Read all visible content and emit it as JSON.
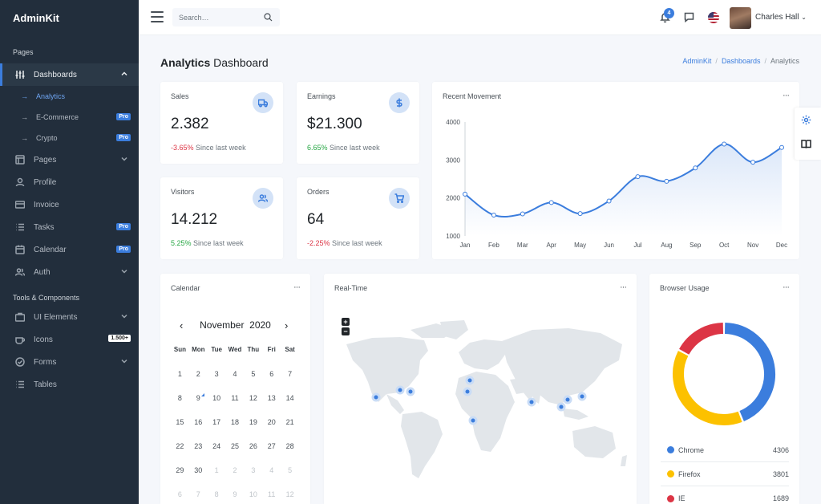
{
  "brand": "AdminKit",
  "sidebar": {
    "section_pages": "Pages",
    "section_tools": "Tools & Components",
    "dashboards": "Dashboards",
    "sub": [
      {
        "label": "Analytics",
        "badge": ""
      },
      {
        "label": "E-Commerce",
        "badge": "Pro"
      },
      {
        "label": "Crypto",
        "badge": "Pro"
      }
    ],
    "items": [
      {
        "label": "Pages",
        "badge": ""
      },
      {
        "label": "Profile",
        "badge": ""
      },
      {
        "label": "Invoice",
        "badge": ""
      },
      {
        "label": "Tasks",
        "badge": "Pro"
      },
      {
        "label": "Calendar",
        "badge": "Pro"
      },
      {
        "label": "Auth",
        "badge": ""
      }
    ],
    "tools": [
      {
        "label": "UI Elements",
        "badge": ""
      },
      {
        "label": "Icons",
        "badge": "1.500+"
      },
      {
        "label": "Forms",
        "badge": ""
      },
      {
        "label": "Tables",
        "badge": ""
      }
    ]
  },
  "topbar": {
    "search_placeholder": "Search…",
    "notification_count": "4",
    "user_name": "Charles Hall"
  },
  "page": {
    "title_bold": "Analytics",
    "title_rest": "Dashboard",
    "breadcrumb": [
      "AdminKit",
      "Dashboards",
      "Analytics"
    ]
  },
  "stats": {
    "sales": {
      "title": "Sales",
      "value": "2.382",
      "change": "-3.65%",
      "note": "Since last week"
    },
    "earnings": {
      "title": "Earnings",
      "value": "$21.300",
      "change": "6.65%",
      "note": "Since last week"
    },
    "visitors": {
      "title": "Visitors",
      "value": "14.212",
      "change": "5.25%",
      "note": "Since last week"
    },
    "orders": {
      "title": "Orders",
      "value": "64",
      "change": "-2.25%",
      "note": "Since last week"
    }
  },
  "recent_movement": {
    "title": "Recent Movement",
    "menu": "···"
  },
  "chart_data": {
    "type": "area",
    "title": "Recent Movement",
    "categories": [
      "Jan",
      "Feb",
      "Mar",
      "Apr",
      "May",
      "Jun",
      "Jul",
      "Aug",
      "Sep",
      "Oct",
      "Nov",
      "Dec"
    ],
    "values": [
      2100,
      1550,
      1580,
      1880,
      1590,
      1920,
      2560,
      2440,
      2790,
      3420,
      2940,
      3330
    ],
    "ylim": [
      1000,
      4000
    ],
    "yticks": [
      "4000",
      "3000",
      "2000",
      "1000"
    ],
    "color": "#3b7ddd",
    "grid": false
  },
  "calendar": {
    "title": "Calendar",
    "month": "November",
    "year": "2020",
    "weekdays": [
      "Sun",
      "Mon",
      "Tue",
      "Wed",
      "Thu",
      "Fri",
      "Sat"
    ],
    "weeks": [
      [
        "1",
        "2",
        "3",
        "4",
        "5",
        "6",
        "7"
      ],
      [
        "8",
        "9",
        "10",
        "11",
        "12",
        "13",
        "14"
      ],
      [
        "15",
        "16",
        "17",
        "18",
        "19",
        "20",
        "21"
      ],
      [
        "22",
        "23",
        "24",
        "25",
        "26",
        "27",
        "28"
      ],
      [
        "29",
        "30",
        "1",
        "2",
        "3",
        "4",
        "5"
      ],
      [
        "6",
        "7",
        "8",
        "9",
        "10",
        "11",
        "12"
      ]
    ],
    "today": "9"
  },
  "realtime": {
    "title": "Real-Time",
    "zoom_in": "+",
    "zoom_out": "−"
  },
  "browser_usage": {
    "title": "Browser Usage",
    "rows": [
      {
        "name": "Chrome",
        "value": "4306",
        "color": "#3b7ddd"
      },
      {
        "name": "Firefox",
        "value": "3801",
        "color": "#fcc100"
      },
      {
        "name": "IE",
        "value": "1689",
        "color": "#dc3545"
      }
    ]
  }
}
